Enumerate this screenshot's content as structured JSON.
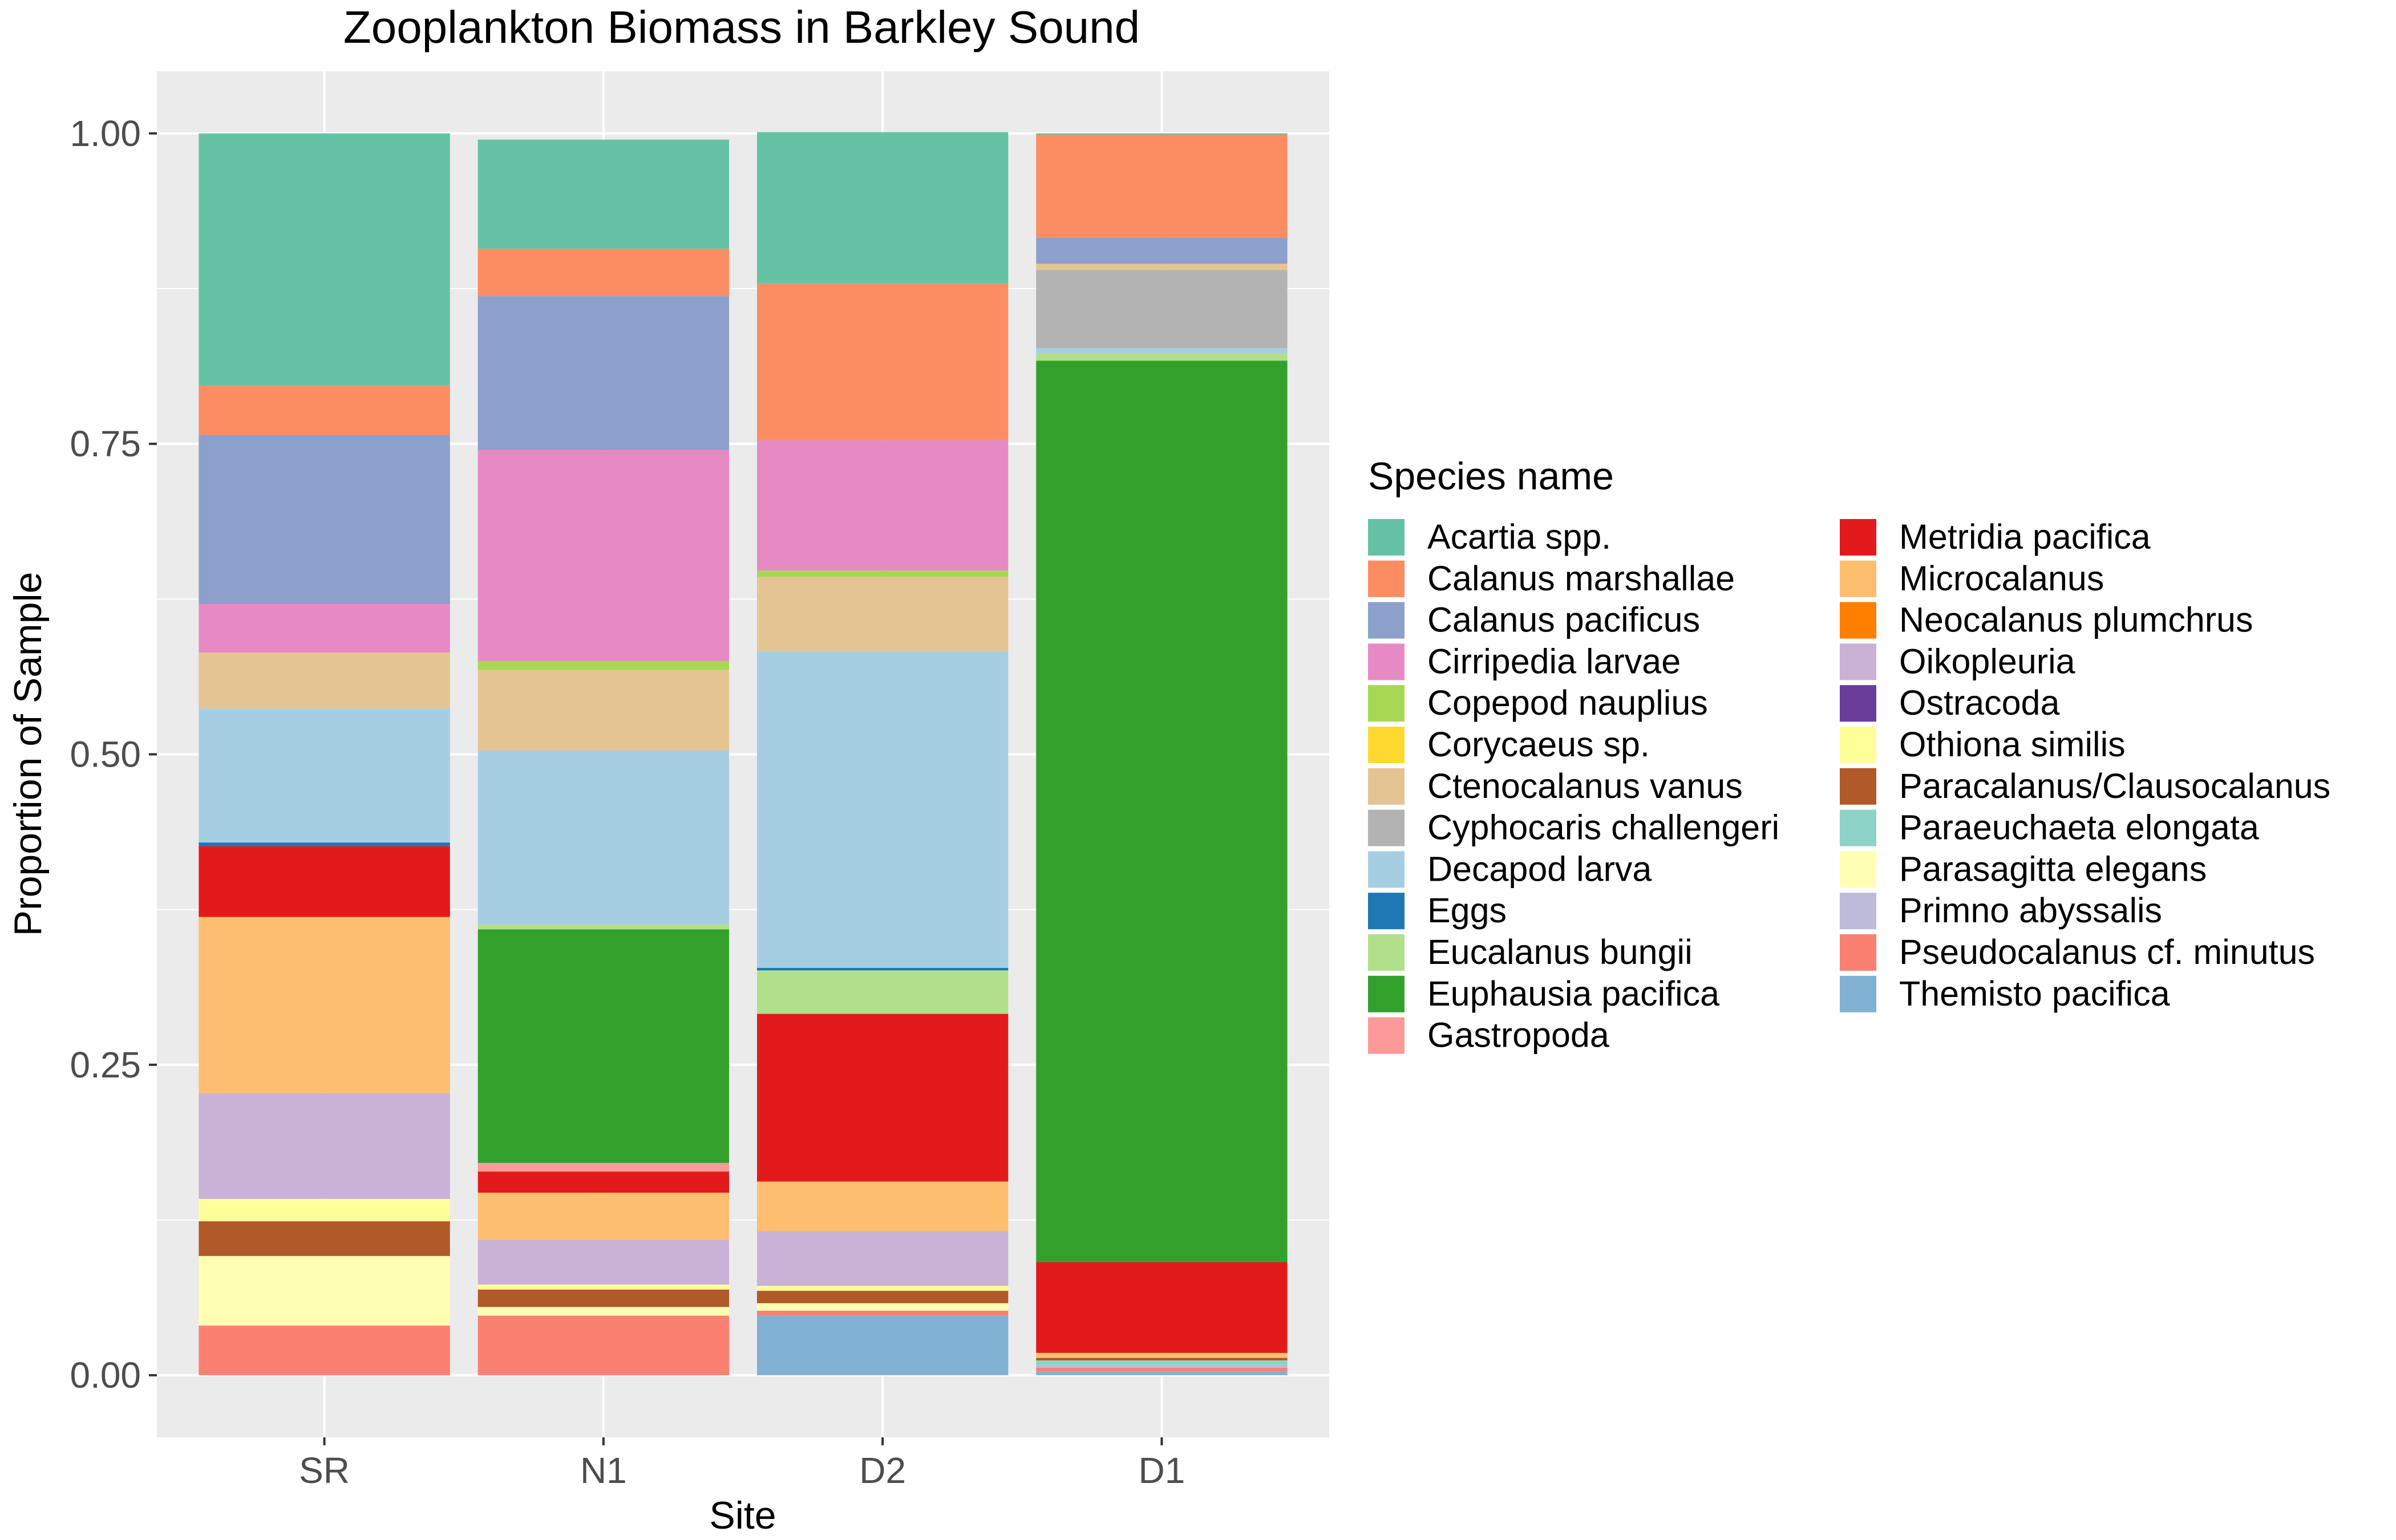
{
  "chart_data": {
    "type": "bar",
    "stacked": true,
    "title": "Zooplankton Biomass in Barkley Sound",
    "xlabel": "Site",
    "ylabel": "Proportion of Sample",
    "categories": [
      "SR",
      "N1",
      "D2",
      "D1"
    ],
    "ylim": [
      -0.05,
      1.05
    ],
    "yticks": [
      0.0,
      0.25,
      0.5,
      0.75,
      1.0
    ],
    "ytick_labels": [
      "0.00",
      "0.25",
      "0.50",
      "0.75",
      "1.00"
    ],
    "grid": true,
    "background": "#EBEBEB",
    "legend": {
      "title": "Species name",
      "position": "right",
      "columns": 2
    },
    "series": [
      {
        "name": "Acartia spp.",
        "color": "#66C2A5",
        "values": [
          0.203,
          0.088,
          0.122,
          0.001
        ]
      },
      {
        "name": "Calanus marshallae",
        "color": "#FC8D62",
        "values": [
          0.04,
          0.038,
          0.126,
          0.083
        ]
      },
      {
        "name": "Calanus pacificus",
        "color": "#8DA0CB",
        "values": [
          0.136,
          0.124,
          0.0,
          0.021
        ]
      },
      {
        "name": "Cirripedia larvae",
        "color": "#E78AC3",
        "values": [
          0.039,
          0.17,
          0.105,
          0.0
        ]
      },
      {
        "name": "Copepod nauplius",
        "color": "#A6D854",
        "values": [
          0.0,
          0.007,
          0.005,
          0.0
        ]
      },
      {
        "name": "Corycaeus sp.",
        "color": "#FFD92F",
        "values": [
          0.0,
          0.0,
          0.0,
          0.0
        ]
      },
      {
        "name": "Ctenocalanus vanus",
        "color": "#E5C494",
        "values": [
          0.045,
          0.065,
          0.06,
          0.005
        ]
      },
      {
        "name": "Cyphocaris challengeri",
        "color": "#B3B3B3",
        "values": [
          0.0,
          0.0,
          0.0,
          0.063
        ]
      },
      {
        "name": "Decapod larva",
        "color": "#A6CEE3",
        "values": [
          0.108,
          0.14,
          0.255,
          0.004
        ]
      },
      {
        "name": "Eggs",
        "color": "#1F78B4",
        "values": [
          0.003,
          0.0,
          0.002,
          0.0
        ]
      },
      {
        "name": "Eucalanus bungii",
        "color": "#B2DF8A",
        "values": [
          0.0,
          0.004,
          0.035,
          0.006
        ]
      },
      {
        "name": "Euphausia pacifica",
        "color": "#33A02C",
        "values": [
          0.0,
          0.188,
          0.0,
          0.726
        ]
      },
      {
        "name": "Gastropoda",
        "color": "#FB9A99",
        "values": [
          0.0,
          0.007,
          0.0,
          0.0
        ]
      },
      {
        "name": "Metridia pacifica",
        "color": "#E31A1C",
        "values": [
          0.057,
          0.017,
          0.135,
          0.073
        ]
      },
      {
        "name": "Microcalanus",
        "color": "#FDBF6F",
        "values": [
          0.142,
          0.038,
          0.04,
          0.004
        ]
      },
      {
        "name": "Neocalanus plumchrus",
        "color": "#FF7F00",
        "values": [
          0.0,
          0.0,
          0.0,
          0.0
        ]
      },
      {
        "name": "Oikopleuria",
        "color": "#CAB2D6",
        "values": [
          0.085,
          0.036,
          0.044,
          0.0
        ]
      },
      {
        "name": "Ostracoda",
        "color": "#6A3D9A",
        "values": [
          0.0,
          0.0,
          0.0,
          0.0
        ]
      },
      {
        "name": "Othiona similis",
        "color": "#FFFF99",
        "values": [
          0.018,
          0.004,
          0.004,
          0.0
        ]
      },
      {
        "name": "Paracalanus/Clausocalanus",
        "color": "#B15928",
        "values": [
          0.028,
          0.014,
          0.01,
          0.002
        ]
      },
      {
        "name": "Paraeuchaeta elongata",
        "color": "#8DD3C7",
        "values": [
          0.0,
          0.0,
          0.0,
          0.004
        ]
      },
      {
        "name": "Parasagitta elegans",
        "color": "#FFFFB3",
        "values": [
          0.056,
          0.007,
          0.006,
          0.0
        ]
      },
      {
        "name": "Primno abyssalis",
        "color": "#BEBADA",
        "values": [
          0.0,
          0.0,
          0.0,
          0.002
        ]
      },
      {
        "name": "Pseudocalanus cf. minutus",
        "color": "#FB8072",
        "values": [
          0.04,
          0.048,
          0.004,
          0.003
        ]
      },
      {
        "name": "Themisto pacifica",
        "color": "#80B1D3",
        "values": [
          0.0,
          0.0,
          0.048,
          0.003
        ]
      }
    ]
  }
}
